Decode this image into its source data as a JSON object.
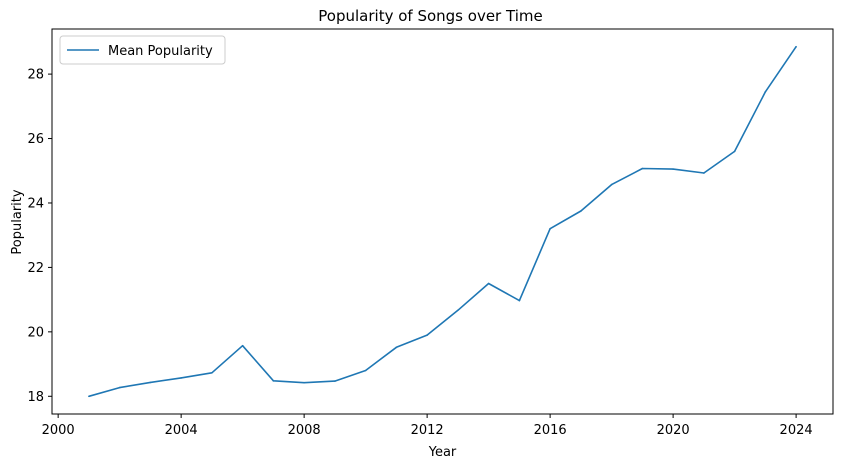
{
  "chart_data": {
    "type": "line",
    "title": "Popularity of Songs over Time",
    "xlabel": "Year",
    "ylabel": "Popularity",
    "xlim": [
      1999.8,
      2025.2
    ],
    "ylim": [
      17.45,
      29.4
    ],
    "xticks": [
      2000,
      2004,
      2008,
      2012,
      2016,
      2020,
      2024
    ],
    "yticks": [
      18,
      20,
      22,
      24,
      26,
      28
    ],
    "grid": false,
    "legend": "top-left",
    "series": [
      {
        "name": "Mean Popularity",
        "color": "#1f77b4",
        "x": [
          2001,
          2002,
          2003,
          2004,
          2005,
          2006,
          2007,
          2008,
          2009,
          2010,
          2011,
          2012,
          2013,
          2014,
          2015,
          2016,
          2017,
          2018,
          2019,
          2020,
          2021,
          2022,
          2023,
          2024
        ],
        "y": [
          18.0,
          18.27,
          18.43,
          18.57,
          18.73,
          19.57,
          18.48,
          18.42,
          18.47,
          18.8,
          19.52,
          19.9,
          20.67,
          21.5,
          20.97,
          23.2,
          23.75,
          24.57,
          25.07,
          25.05,
          24.93,
          25.6,
          27.45,
          28.85
        ]
      }
    ]
  }
}
